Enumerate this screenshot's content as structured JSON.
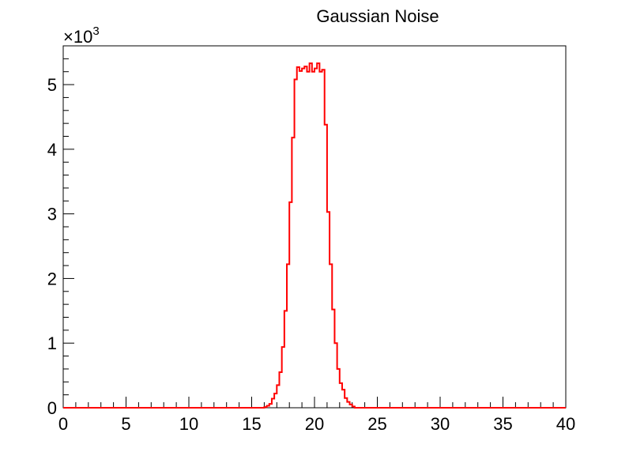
{
  "chart_data": {
    "type": "bar",
    "style": "step-histogram",
    "title": "Gaussian Noise",
    "xlabel": "",
    "ylabel": "",
    "y_multiplier_label": "×10",
    "y_multiplier_exponent": "3",
    "xlim": [
      0,
      40
    ],
    "ylim": [
      0,
      5600
    ],
    "x_ticks": [
      "0",
      "5",
      "10",
      "15",
      "20",
      "25",
      "30",
      "35",
      "40"
    ],
    "y_ticks": [
      "0",
      "1",
      "2",
      "3",
      "4",
      "5"
    ],
    "grid": false,
    "series_color": "#ff0000",
    "series": [
      {
        "bin_width": 0.4,
        "x": [
          16.0,
          16.4,
          16.8,
          17.2,
          17.6,
          18.0,
          18.4,
          18.8,
          19.2,
          19.6,
          20.0,
          20.4,
          20.8,
          21.2,
          21.6,
          22.0,
          22.4,
          22.8,
          23.2,
          23.6
        ],
        "values": [
          20,
          150,
          350,
          550,
          940,
          2220,
          4180,
          5250,
          5210,
          5300,
          5200,
          5310,
          5230,
          4380,
          3030,
          1520,
          1000,
          600,
          280,
          50
        ]
      }
    ],
    "bins_fine": {
      "start": 16.0,
      "width": 0.2,
      "values": [
        10,
        30,
        60,
        140,
        220,
        350,
        550,
        940,
        1500,
        2220,
        3180,
        4180,
        5080,
        5270,
        5210,
        5250,
        5280,
        5200,
        5330,
        5200,
        5250,
        5330,
        5200,
        5230,
        4380,
        3030,
        2220,
        1520,
        1000,
        600,
        380,
        280,
        150,
        90,
        50,
        20,
        0,
        0,
        0,
        0
      ]
    }
  }
}
